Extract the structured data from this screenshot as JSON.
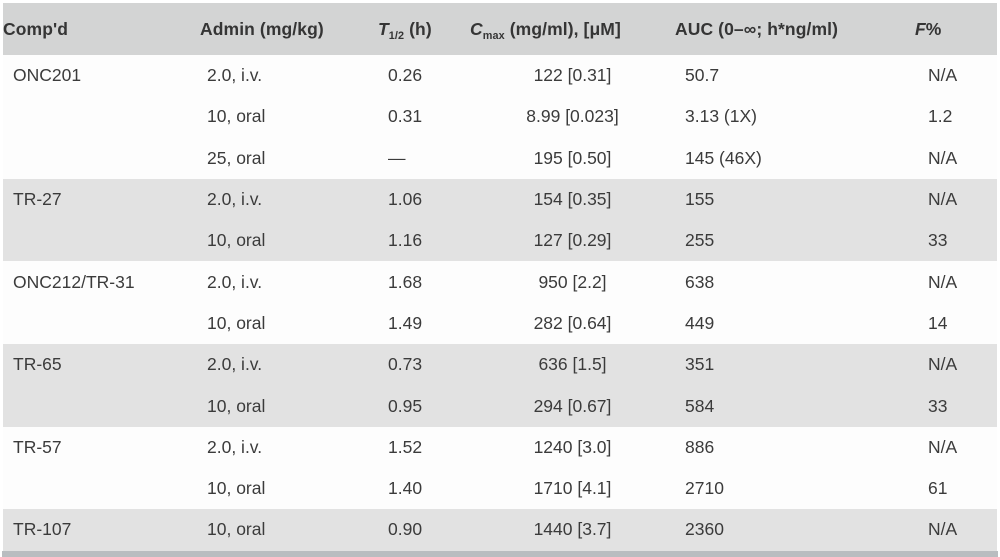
{
  "table": {
    "header": {
      "compound": "Comp'd",
      "admin": "Admin (mg/kg)",
      "t_half": {
        "base": "T",
        "sub": "1/2",
        "rest": " (h)"
      },
      "cmax": {
        "base": "C",
        "sub": "max",
        "rest": " (mg/ml), [μM]"
      },
      "auc": "AUC (0–∞; h*ng/ml)",
      "f": {
        "base": "F",
        "rest": "%"
      }
    },
    "rows": [
      {
        "compound": "ONC201",
        "admin": "2.0, i.v.",
        "t_half": "0.26",
        "cmax": "122 [0.31]",
        "auc": "50.7",
        "f": "N/A",
        "shaded": false
      },
      {
        "compound": "",
        "admin": "10, oral",
        "t_half": "0.31",
        "cmax": "8.99 [0.023]",
        "auc": "3.13 (1X)",
        "f": "1.2",
        "shaded": false
      },
      {
        "compound": "",
        "admin": "25, oral",
        "t_half": "—",
        "cmax": "195 [0.50]",
        "auc": "145 (46X)",
        "f": "N/A",
        "shaded": false
      },
      {
        "compound": "TR-27",
        "admin": "2.0, i.v.",
        "t_half": "1.06",
        "cmax": "154 [0.35]",
        "auc": "155",
        "f": "N/A",
        "shaded": true
      },
      {
        "compound": "",
        "admin": "10, oral",
        "t_half": "1.16",
        "cmax": "127 [0.29]",
        "auc": "255",
        "f": "33",
        "shaded": true
      },
      {
        "compound": "ONC212/TR-31",
        "admin": "2.0, i.v.",
        "t_half": "1.68",
        "cmax": "950 [2.2]",
        "auc": "638",
        "f": "N/A",
        "shaded": false
      },
      {
        "compound": "",
        "admin": "10, oral",
        "t_half": "1.49",
        "cmax": "282 [0.64]",
        "auc": "449",
        "f": "14",
        "shaded": false
      },
      {
        "compound": "TR-65",
        "admin": "2.0, i.v.",
        "t_half": "0.73",
        "cmax": "636 [1.5]",
        "auc": "351",
        "f": "N/A",
        "shaded": true
      },
      {
        "compound": "",
        "admin": "10, oral",
        "t_half": "0.95",
        "cmax": "294 [0.67]",
        "auc": "584",
        "f": "33",
        "shaded": true
      },
      {
        "compound": "TR-57",
        "admin": "2.0, i.v.",
        "t_half": "1.52",
        "cmax": "1240 [3.0]",
        "auc": "886",
        "f": "N/A",
        "shaded": false
      },
      {
        "compound": "",
        "admin": "10, oral",
        "t_half": "1.40",
        "cmax": "1710 [4.1]",
        "auc": "2710",
        "f": "61",
        "shaded": false
      },
      {
        "compound": "TR-107",
        "admin": "10, oral",
        "t_half": "0.90",
        "cmax": "1440 [3.7]",
        "auc": "2360",
        "f": "N/A",
        "shaded": true
      }
    ]
  },
  "colors": {
    "header_bg": "#d3d4d4",
    "band_bg": "#e2e2e2",
    "row_bg": "#fdfdfd",
    "text": "#3b3b3b",
    "bottom_cutoff_bar": "#b9bdc0",
    "page_bg": "#ffffff"
  }
}
